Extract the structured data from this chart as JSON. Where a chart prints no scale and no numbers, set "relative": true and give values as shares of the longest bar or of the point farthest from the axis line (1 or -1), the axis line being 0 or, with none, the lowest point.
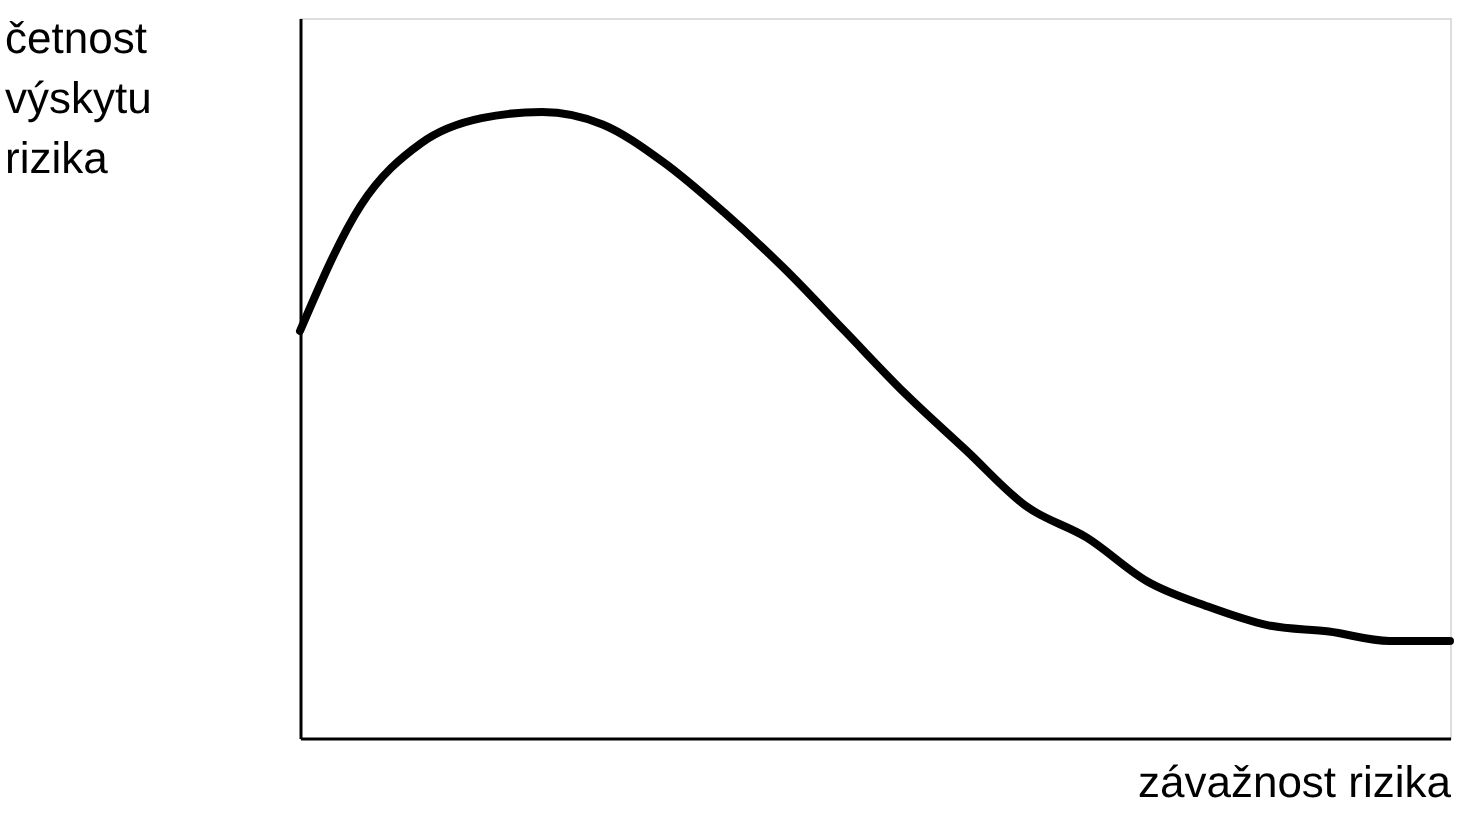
{
  "chart_data": {
    "type": "line",
    "relative": true,
    "xlabel": "závažnost rizika",
    "ylabel": "četnost výskytu rizika",
    "categories": [
      null,
      null,
      null,
      null,
      null,
      null,
      null,
      null,
      null,
      null,
      null,
      null,
      null,
      null,
      null,
      null,
      null,
      null,
      null,
      null
    ],
    "series": [
      {
        "color": "#000000",
        "values": [
          0.65,
          0.85,
          0.95,
          0.99,
          1.0,
          0.98,
          0.92,
          0.84,
          0.75,
          0.65,
          0.55,
          0.46,
          0.37,
          0.32,
          0.25,
          0.21,
          0.18,
          0.17,
          0.155,
          0.155
        ]
      }
    ],
    "grid": false,
    "marker": "none",
    "line_style": "solid"
  }
}
